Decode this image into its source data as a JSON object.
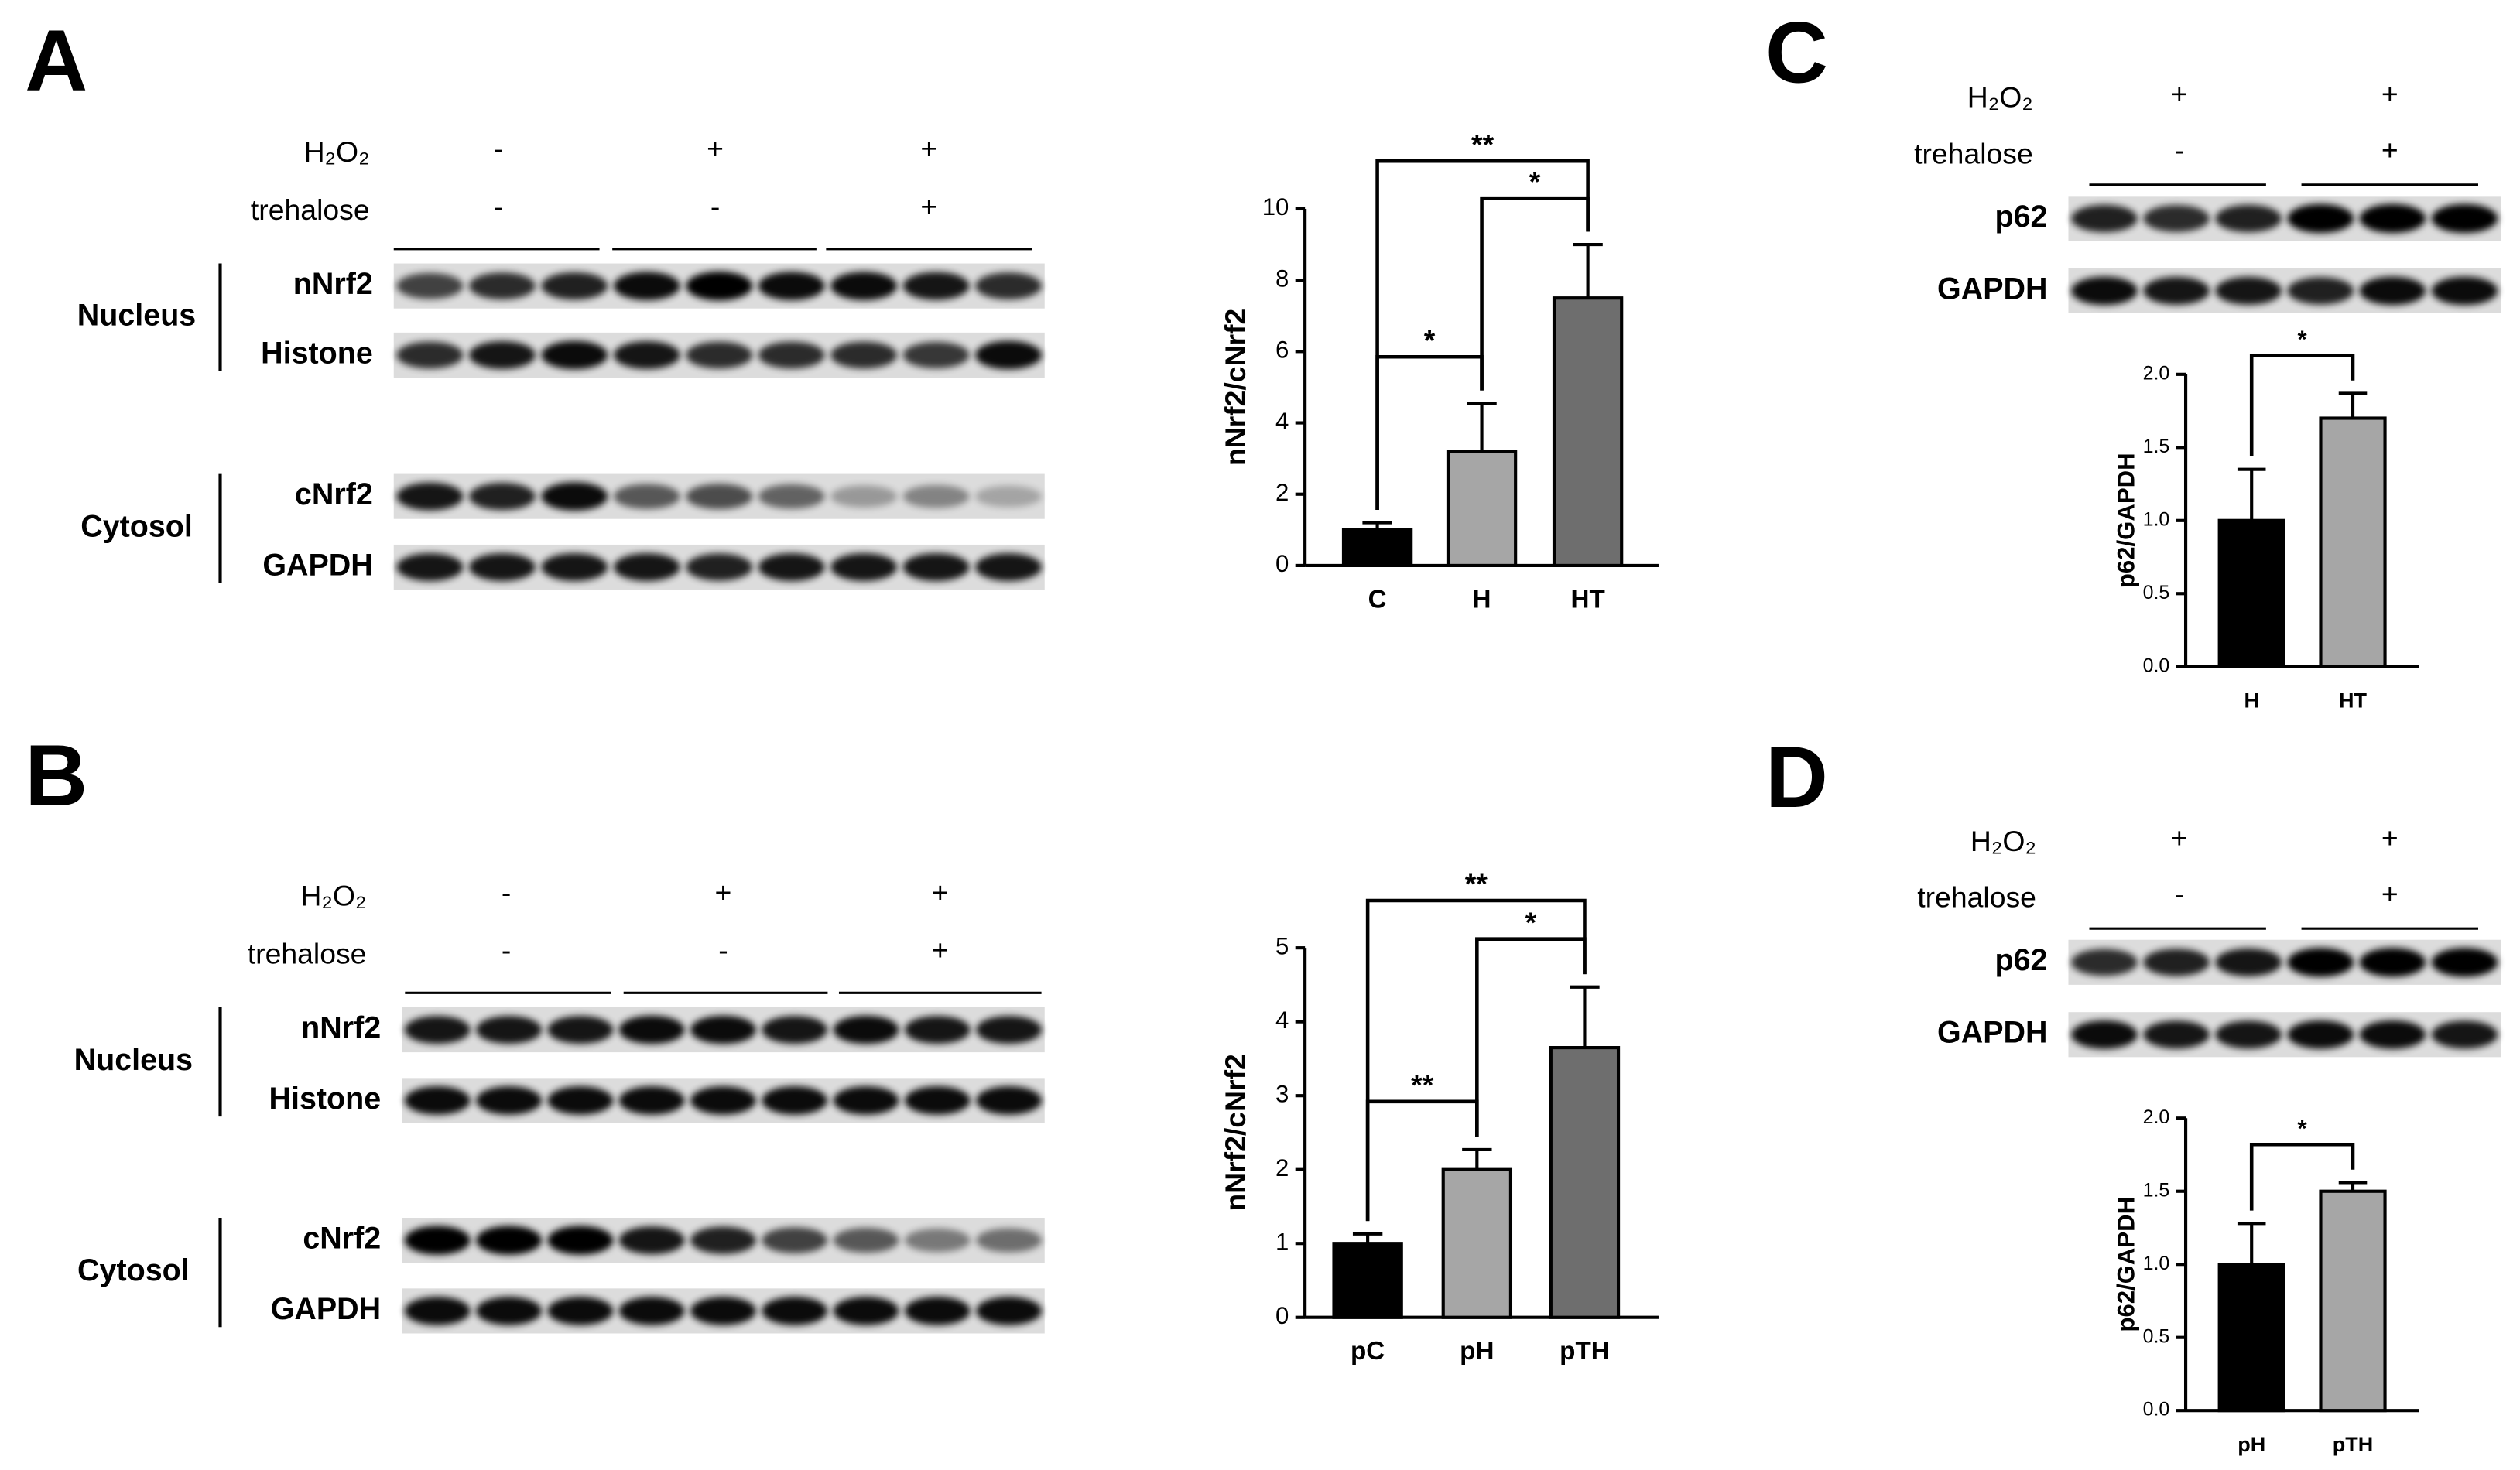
{
  "panels": [
    {
      "letter": "A",
      "conditions": [
        {
          "name": "H₂O₂",
          "signs": [
            "-",
            "+",
            "+"
          ]
        },
        {
          "name": "trehalose",
          "signs": [
            "-",
            "-",
            "+"
          ]
        }
      ],
      "groups": [
        {
          "name": "Nucleus",
          "rows": [
            "nNrf2",
            "Histone"
          ]
        },
        {
          "name": "Cytosol",
          "rows": [
            "cNrf2",
            "GAPDH"
          ]
        }
      ]
    },
    {
      "letter": "B",
      "conditions": [
        {
          "name": "H₂O₂",
          "signs": [
            "-",
            "+",
            "+"
          ]
        },
        {
          "name": "trehalose",
          "signs": [
            "-",
            "-",
            "+"
          ]
        }
      ],
      "groups": [
        {
          "name": "Nucleus",
          "rows": [
            "nNrf2",
            "Histone"
          ]
        },
        {
          "name": "Cytosol",
          "rows": [
            "cNrf2",
            "GAPDH"
          ]
        }
      ]
    },
    {
      "letter": "C",
      "conditions": [
        {
          "name": "H₂O₂",
          "signs": [
            "+",
            "+"
          ]
        },
        {
          "name": "trehalose",
          "signs": [
            "-",
            "+"
          ]
        }
      ],
      "rows": [
        "p62",
        "GAPDH"
      ]
    },
    {
      "letter": "D",
      "conditions": [
        {
          "name": "H₂O₂",
          "signs": [
            "+",
            "+"
          ]
        },
        {
          "name": "trehalose",
          "signs": [
            "-",
            "+"
          ]
        }
      ],
      "rows": [
        "p62",
        "GAPDH"
      ]
    }
  ],
  "chart_data": [
    {
      "type": "bar",
      "ylabel": "nNrf2/cNrf2",
      "categories": [
        "C",
        "H",
        "HT"
      ],
      "values": [
        1.0,
        3.2,
        7.5
      ],
      "errors": [
        0.2,
        1.35,
        1.5
      ],
      "colors": [
        "#000000",
        "#a6a6a6",
        "#6e6e6e"
      ],
      "ylim": [
        0,
        10
      ],
      "yticks": [
        0,
        2,
        4,
        6,
        8,
        10
      ],
      "significance": [
        {
          "between": [
            "C",
            "H"
          ],
          "label": "*"
        },
        {
          "between": [
            "H",
            "HT"
          ],
          "label": "*"
        },
        {
          "between": [
            "C",
            "HT"
          ],
          "label": "**"
        }
      ]
    },
    {
      "type": "bar",
      "ylabel": "nNrf2/cNrf2",
      "categories": [
        "pC",
        "pH",
        "pTH"
      ],
      "values": [
        1.0,
        2.0,
        3.65
      ],
      "errors": [
        0.13,
        0.27,
        0.82
      ],
      "colors": [
        "#000000",
        "#a6a6a6",
        "#6e6e6e"
      ],
      "ylim": [
        0,
        5
      ],
      "yticks": [
        0,
        1,
        2,
        3,
        4,
        5
      ],
      "significance": [
        {
          "between": [
            "pC",
            "pH"
          ],
          "label": "**"
        },
        {
          "between": [
            "pH",
            "pTH"
          ],
          "label": "*"
        },
        {
          "between": [
            "pC",
            "pTH"
          ],
          "label": "**"
        }
      ]
    },
    {
      "type": "bar",
      "ylabel": "p62/GAPDH",
      "categories": [
        "H",
        "HT"
      ],
      "values": [
        1.0,
        1.7
      ],
      "errors": [
        0.35,
        0.17
      ],
      "colors": [
        "#000000",
        "#a6a6a6"
      ],
      "ylim": [
        0,
        2
      ],
      "yticks": [
        {
          "value": 0,
          "label": "0.0"
        },
        0.5,
        {
          "value": 1,
          "label": "1.0"
        },
        1.5,
        {
          "value": 2,
          "label": "2.0"
        }
      ],
      "significance": [
        {
          "between": [
            "H",
            "HT"
          ],
          "label": "*"
        }
      ]
    },
    {
      "type": "bar",
      "ylabel": "p62/GAPDH",
      "categories": [
        "pH",
        "pTH"
      ],
      "values": [
        1.0,
        1.5
      ],
      "errors": [
        0.28,
        0.06
      ],
      "colors": [
        "#000000",
        "#a6a6a6"
      ],
      "ylim": [
        0,
        2
      ],
      "yticks": [
        {
          "value": 0,
          "label": "0.0"
        },
        0.5,
        {
          "value": 1,
          "label": "1.0"
        },
        1.5,
        {
          "value": 2,
          "label": "2.0"
        }
      ],
      "significance": [
        {
          "between": [
            "pH",
            "pTH"
          ],
          "label": "*"
        }
      ]
    }
  ]
}
